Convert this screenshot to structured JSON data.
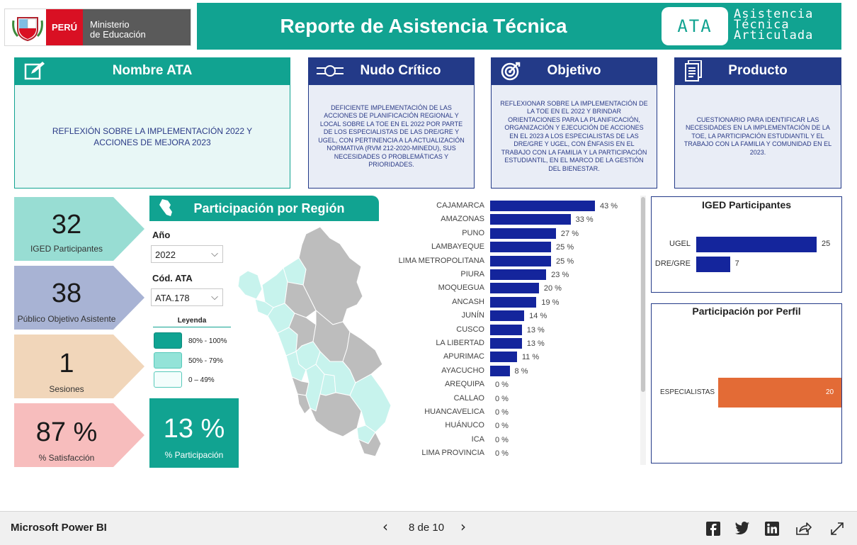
{
  "header": {
    "logo_country": "PERÚ",
    "logo_ministry_line1": "Ministerio",
    "logo_ministry_line2": "de Educación",
    "title": "Reporte de Asistencia Técnica",
    "badge": "ATA",
    "badge_text_line1": "Asistencia",
    "badge_text_line2": "Técnica",
    "badge_text_line3": "Articulada"
  },
  "cards": {
    "nombre": {
      "title": "Nombre ATA",
      "body": "REFLEXIÓN SOBRE LA IMPLEMENTACIÓN 2022 Y ACCIONES DE MEJORA 2023"
    },
    "nudo": {
      "title": "Nudo Crítico",
      "body": "DEFICIENTE IMPLEMENTACIÓN DE LAS ACCIONES DE PLANIFICACIÓN REGIONAL Y LOCAL SOBRE LA TOE EN EL 2022 POR PARTE DE LOS ESPECIALISTAS DE LAS DRE/GRE Y UGEL, CON PERTINENCIA A LA ACTUALIZACIÓN NORMATIVA (RVM 212-2020-MINEDU), SUS NECESIDADES O PROBLEMÁTICAS Y PRIORIDADES."
    },
    "objetivo": {
      "title": "Objetivo",
      "body": "REFLEXIONAR SOBRE LA IMPLEMENTACIÓN DE LA TOE EN EL 2022 Y BRINDAR ORIENTACIONES PARA LA PLANIFICACIÓN, ORGANIZACIÓN Y EJECUCIÓN DE ACCIONES EN EL 2023 A LOS ESPECIALISTAS DE LAS DRE/GRE Y UGEL, CON ÉNFASIS EN EL TRABAJO CON LA FAMILIA Y LA PARTICIPACIÓN ESTUDIANTIL, EN EL MARCO DE LA GESTIÓN DEL BIENESTAR."
    },
    "producto": {
      "title": "Producto",
      "body": "CUESTIONARIO PARA IDENTIFICAR LAS NECESIDADES EN LA IMPLEMENTACIÓN DE LA TOE, LA PARTICIPACIÓN ESTUDIANTIL Y EL TRABAJO CON LA FAMILIA Y COMUNIDAD EN EL 2023."
    }
  },
  "kpis": [
    {
      "value": "32",
      "label": "IGED Participantes",
      "color": "#98ddd3"
    },
    {
      "value": "38",
      "label": "Público Objetivo Asistente",
      "color": "#a8b3d4"
    },
    {
      "value": "1",
      "label": "Sesiones",
      "color": "#f1d6ba"
    },
    {
      "value": "87 %",
      "label": "% Satisfacción",
      "color": "#f7bdbd"
    }
  ],
  "region": {
    "title": "Participación por Región",
    "year_label": "Año",
    "year_value": "2022",
    "code_label": "Cód. ATA",
    "code_value": "ATA.178",
    "legend_title": "Leyenda",
    "legend": [
      {
        "label": "80% - 100%",
        "color": "#0fa392"
      },
      {
        "label": "50% - 79%",
        "color": "#93e3d8"
      },
      {
        "label": "0 – 49%",
        "color": "#f3fdfc"
      }
    ],
    "participation_value": "13 %",
    "participation_label": "% Participación"
  },
  "chart_data": [
    {
      "type": "bar",
      "orientation": "horizontal",
      "categories": [
        "CAJAMARCA",
        "AMAZONAS",
        "PUNO",
        "LAMBAYEQUE",
        "LIMA METROPOLITANA",
        "PIURA",
        "MOQUEGUA",
        "ANCASH",
        "JUNÍN",
        "CUSCO",
        "LA LIBERTAD",
        "APURIMAC",
        "AYACUCHO",
        "AREQUIPA",
        "CALLAO",
        "HUANCAVELICA",
        "HUÁNUCO",
        "ICA",
        "LIMA PROVINCIA"
      ],
      "values": [
        43,
        33,
        27,
        25,
        25,
        23,
        20,
        19,
        14,
        13,
        13,
        11,
        8,
        0,
        0,
        0,
        0,
        0,
        0
      ],
      "value_labels": [
        "43 %",
        "33 %",
        "27 %",
        "25 %",
        "25 %",
        "23 %",
        "20 %",
        "19 %",
        "14 %",
        "13 %",
        "13 %",
        "11 %",
        "8 %",
        "0 %",
        "0 %",
        "0 %",
        "0 %",
        "0 %",
        "0 %"
      ],
      "color": "#14259c"
    },
    {
      "type": "bar",
      "orientation": "horizontal",
      "title": "IGED Participantes",
      "categories": [
        "UGEL",
        "DRE/GRE"
      ],
      "values": [
        25,
        7
      ],
      "value_labels": [
        "25",
        "7"
      ],
      "color": "#14259c"
    },
    {
      "type": "bar",
      "orientation": "horizontal",
      "title": "Participación por Perfil",
      "categories": [
        "ESPECIALISTAS"
      ],
      "values": [
        20
      ],
      "value_labels": [
        "20"
      ],
      "color": "#e36b36"
    }
  ],
  "footer": {
    "brand": "Microsoft Power BI",
    "page_indicator": "8 de 10"
  }
}
